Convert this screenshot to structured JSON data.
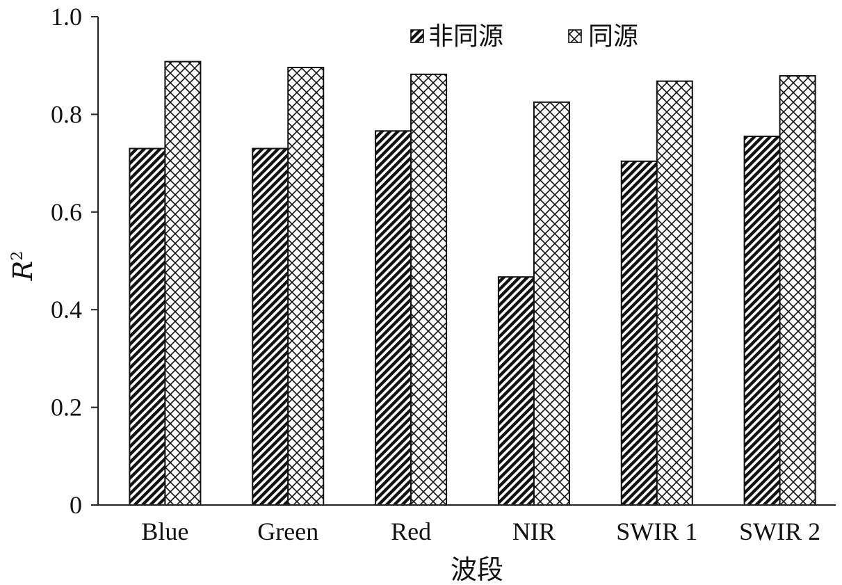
{
  "chart_data": {
    "type": "bar",
    "categories": [
      "Blue",
      "Green",
      "Red",
      "NIR",
      "SWIR 1",
      "SWIR 2"
    ],
    "series": [
      {
        "name": "非同源",
        "values": [
          0.73,
          0.73,
          0.766,
          0.467,
          0.704,
          0.755
        ],
        "pattern": "diagonal-hatch"
      },
      {
        "name": "同源",
        "values": [
          0.908,
          0.896,
          0.882,
          0.825,
          0.868,
          0.879
        ],
        "pattern": "crosshatch"
      }
    ],
    "ylim": [
      0,
      1.0
    ],
    "yticks": [
      "0",
      "0.2",
      "0.4",
      "0.6",
      "0.8",
      "1.0"
    ],
    "ytick_values": [
      0,
      0.2,
      0.4,
      0.6,
      0.8,
      1.0
    ],
    "xlabel": "波段",
    "ylabel": "R",
    "ylabel_superscript": "2",
    "legend_position": "top-right",
    "grid": false,
    "colors": {
      "bar_stroke": "#111111",
      "hatch": "#111111",
      "background": "#ffffff"
    }
  }
}
